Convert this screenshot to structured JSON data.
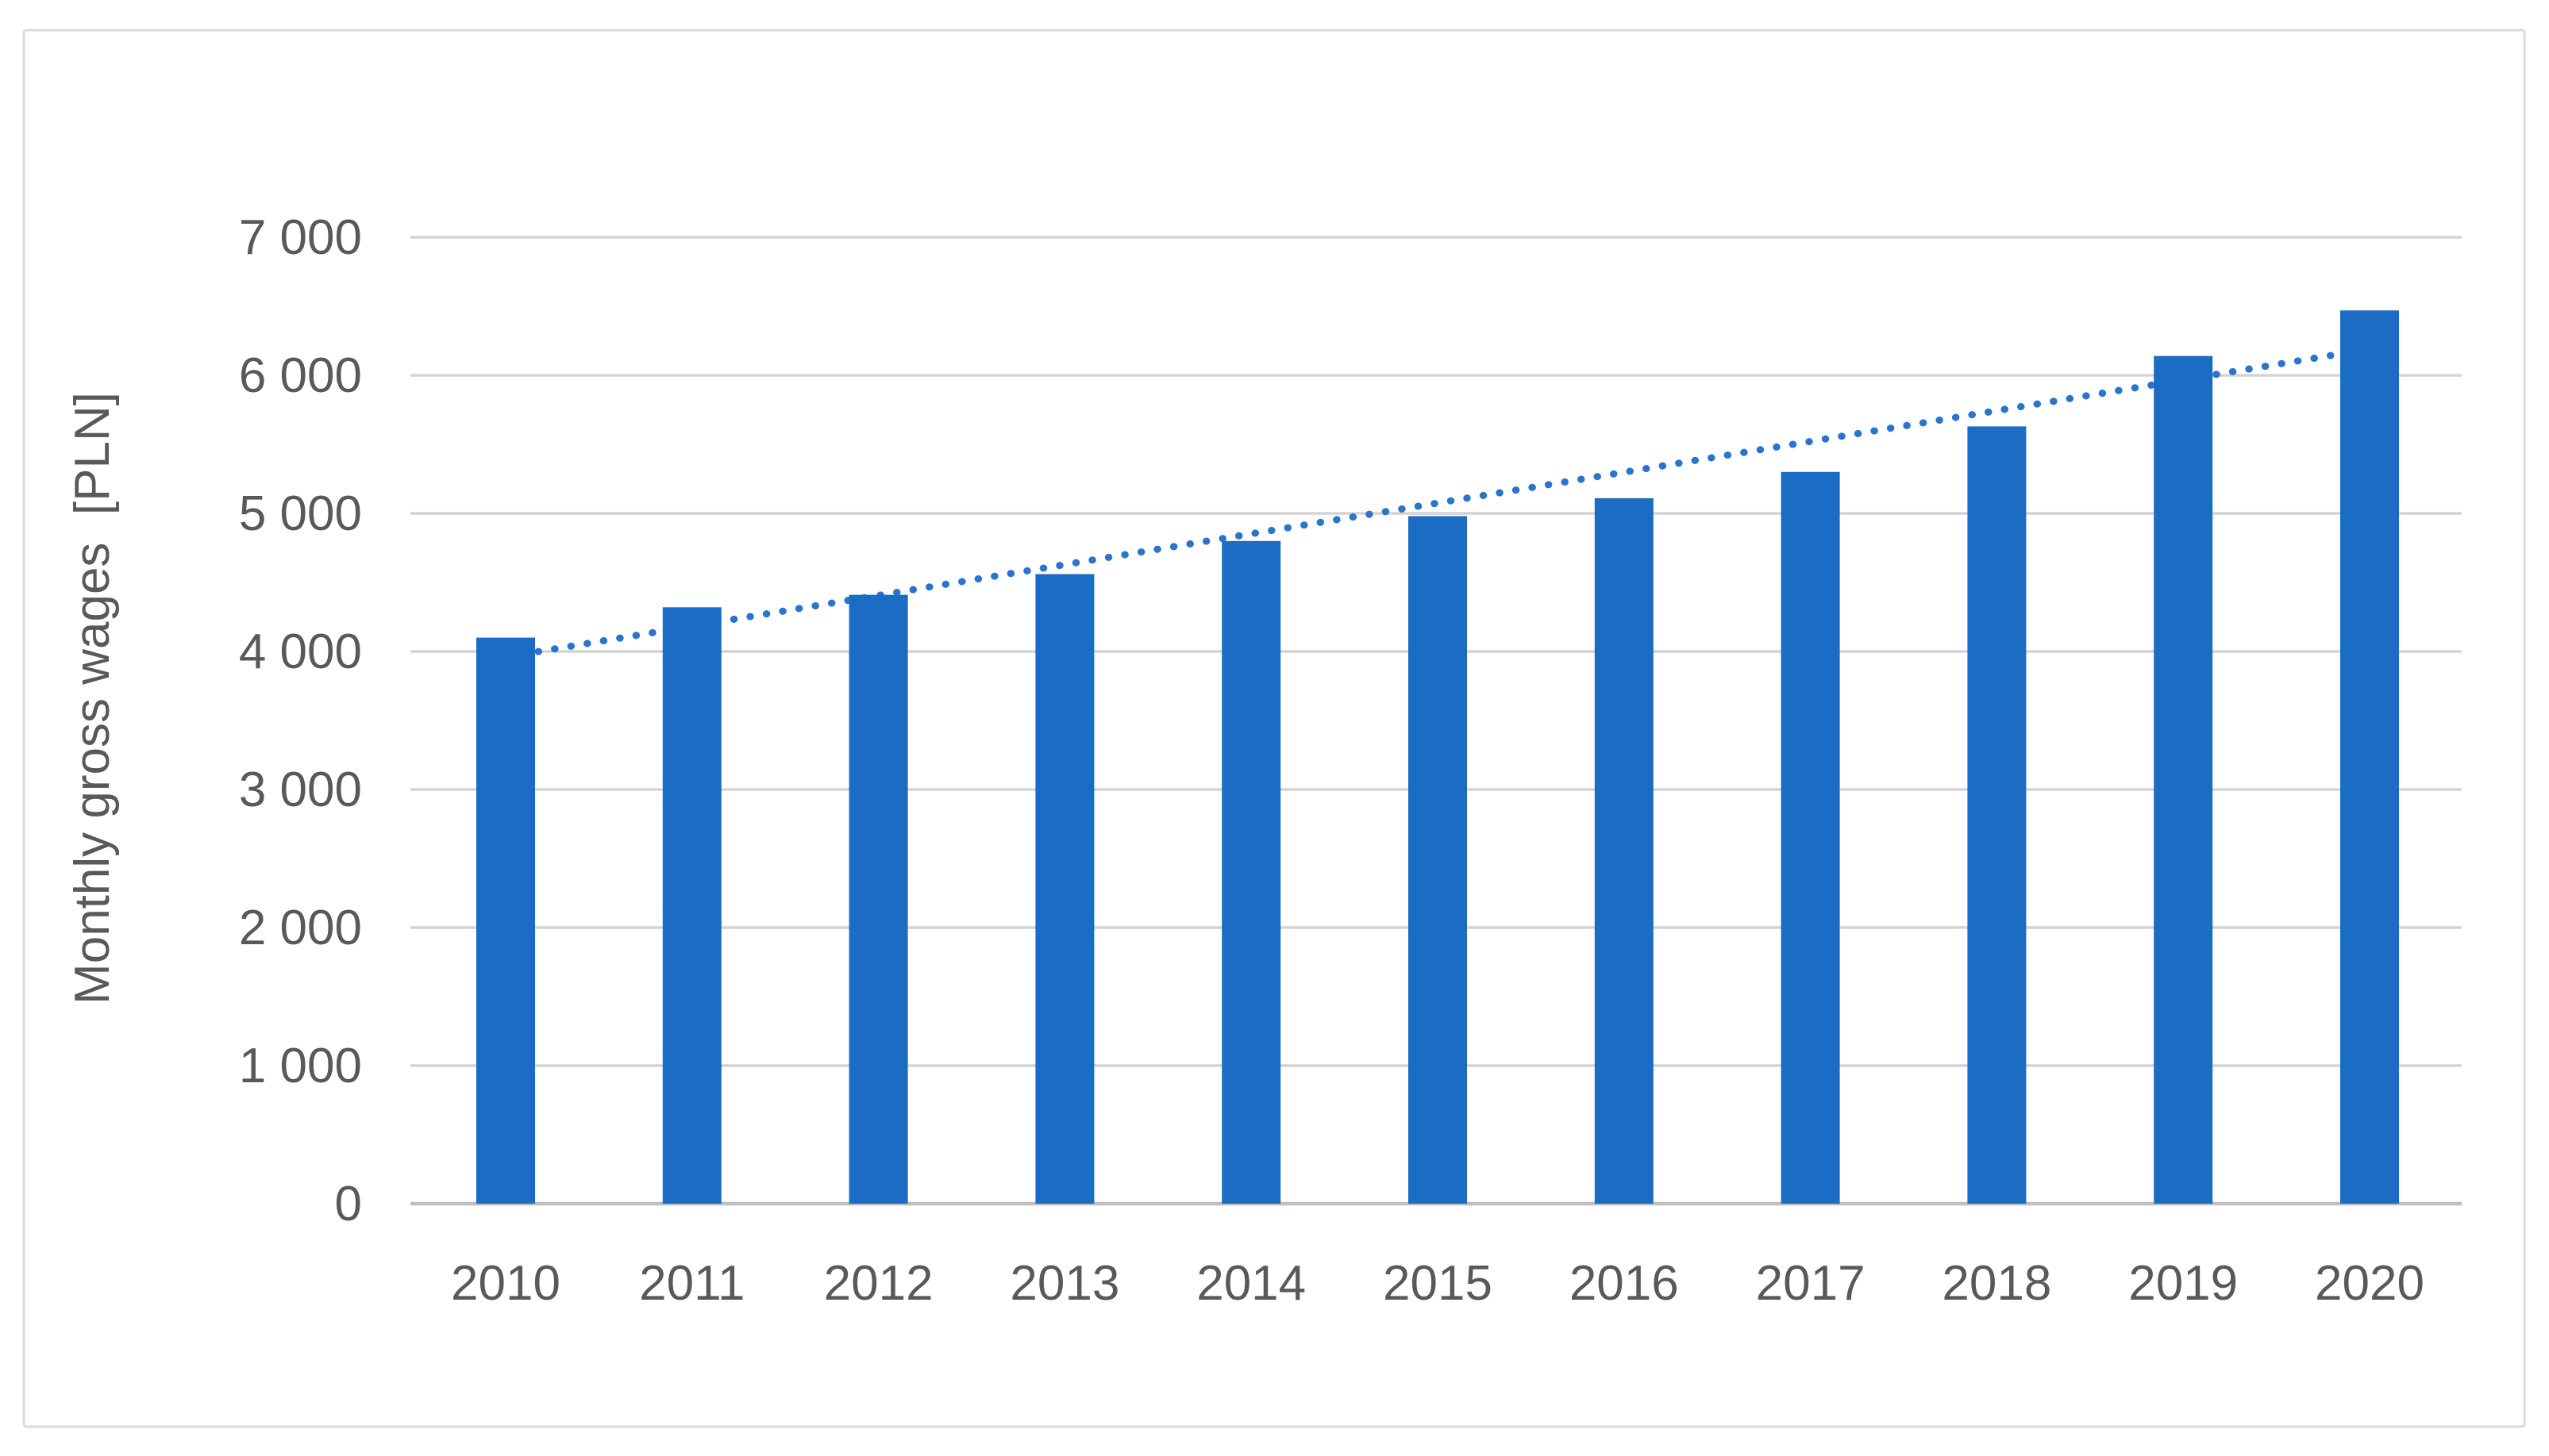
{
  "chart_data": {
    "type": "bar",
    "title": "",
    "xlabel": "",
    "ylabel": "Monthly gross wages  [PLN]",
    "categories": [
      "2010",
      "2011",
      "2012",
      "2013",
      "2014",
      "2015",
      "2016",
      "2017",
      "2018",
      "2019",
      "2020"
    ],
    "series": [
      {
        "name": "Monthly gross wages",
        "values": [
          4100,
          4320,
          4410,
          4560,
          4800,
          4980,
          5110,
          5300,
          5630,
          6140,
          6470
        ]
      }
    ],
    "trendline": {
      "type": "linear",
      "style": "dotted",
      "start_category": "2010",
      "start_value": 3960,
      "end_category": "2020",
      "end_value": 6190
    },
    "yticks": {
      "values": [
        0,
        1000,
        2000,
        3000,
        4000,
        5000,
        6000,
        7000
      ],
      "labels": [
        "0",
        "1 000",
        "2 000",
        "3 000",
        "4 000",
        "5 000",
        "6 000",
        "7 000"
      ]
    },
    "ylim": [
      0,
      7000
    ],
    "grid": "horizontal",
    "legend_position": "none",
    "colors": {
      "bar": "#1A6CC4",
      "trendline": "#2B74CB",
      "gridline": "#D4D4D4",
      "axis_line": "#BFBFBF",
      "tick_text": "#595959",
      "frame_border": "#DBDBDB",
      "background": "#FFFFFF"
    }
  }
}
